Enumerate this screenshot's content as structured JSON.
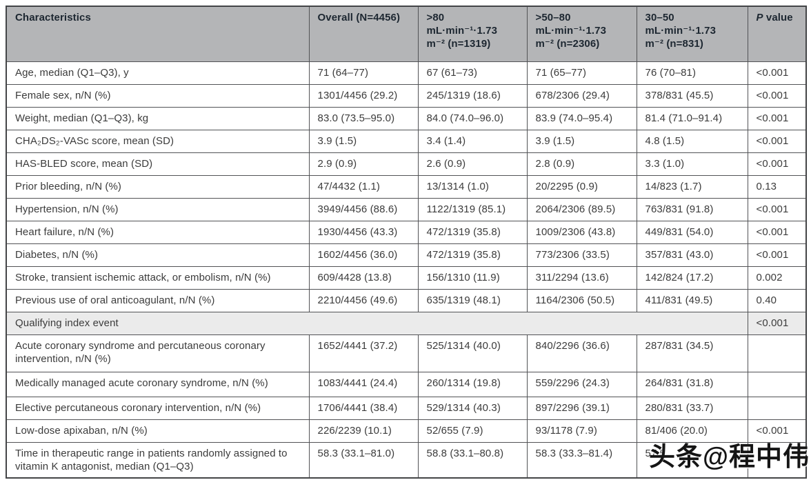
{
  "header": {
    "characteristics": "Characteristics",
    "overall": "Overall (N=4456)",
    "g80": ">80\nmL·min⁻¹·1.73\nm⁻² (n=1319)",
    "g50_80": ">50–80\nmL·min⁻¹·1.73\nm⁻² (n=2306)",
    "g30_50": "30–50\nmL·min⁻¹·1.73\nm⁻² (n=831)",
    "p_italic": "P",
    "p_rest": " value"
  },
  "rows": [
    {
      "label": "Age, median (Q1–Q3), y",
      "overall": "71 (64–77)",
      "g80": "67 (61–73)",
      "g50_80": "71 (65–77)",
      "g30_50": "76 (70–81)",
      "p": "<0.001"
    },
    {
      "label": "Female sex, n/N (%)",
      "overall": "1301/4456 (29.2)",
      "g80": "245/1319 (18.6)",
      "g50_80": "678/2306 (29.4)",
      "g30_50": "378/831 (45.5)",
      "p": "<0.001"
    },
    {
      "label": "Weight, median (Q1–Q3), kg",
      "overall": "83.0 (73.5–95.0)",
      "g80": "84.0 (74.0–96.0)",
      "g50_80": "83.9 (74.0–95.4)",
      "g30_50": "81.4 (71.0–91.4)",
      "p": "<0.001"
    },
    {
      "label": "CHA₂DS₂-VASc score, mean (SD)",
      "overall": "3.9 (1.5)",
      "g80": "3.4 (1.4)",
      "g50_80": "3.9 (1.5)",
      "g30_50": "4.8 (1.5)",
      "p": "<0.001"
    },
    {
      "label": "HAS-BLED score, mean (SD)",
      "overall": "2.9 (0.9)",
      "g80": "2.6 (0.9)",
      "g50_80": "2.8 (0.9)",
      "g30_50": "3.3 (1.0)",
      "p": "<0.001"
    },
    {
      "label": "Prior bleeding, n/N (%)",
      "overall": "47/4432 (1.1)",
      "g80": "13/1314 (1.0)",
      "g50_80": "20/2295 (0.9)",
      "g30_50": "14/823 (1.7)",
      "p": "0.13"
    },
    {
      "label": "Hypertension, n/N (%)",
      "overall": "3949/4456 (88.6)",
      "g80": "1122/1319 (85.1)",
      "g50_80": "2064/2306 (89.5)",
      "g30_50": "763/831 (91.8)",
      "p": "<0.001"
    },
    {
      "label": "Heart failure, n/N (%)",
      "overall": "1930/4456 (43.3)",
      "g80": "472/1319 (35.8)",
      "g50_80": "1009/2306 (43.8)",
      "g30_50": "449/831 (54.0)",
      "p": "<0.001"
    },
    {
      "label": "Diabetes, n/N (%)",
      "overall": "1602/4456 (36.0)",
      "g80": "472/1319 (35.8)",
      "g50_80": "773/2306 (33.5)",
      "g30_50": "357/831 (43.0)",
      "p": "<0.001"
    },
    {
      "label": "Stroke, transient ischemic attack, or embolism, n/N (%)",
      "overall": "609/4428 (13.8)",
      "g80": "156/1310 (11.9)",
      "g50_80": "311/2294 (13.6)",
      "g30_50": "142/824 (17.2)",
      "p": "0.002"
    },
    {
      "label": "Previous use of oral anticoagulant, n/N (%)",
      "overall": "2210/4456 (49.6)",
      "g80": "635/1319 (48.1)",
      "g50_80": "1164/2306 (50.5)",
      "g30_50": "411/831 (49.5)",
      "p": "0.40"
    },
    {
      "label": "Qualifying index event",
      "overall": "",
      "g80": "",
      "g50_80": "",
      "g30_50": "",
      "p": "<0.001"
    },
    {
      "label": "Acute coronary syndrome and percutaneous coronary intervention, n/N (%)",
      "overall": "1652/4441 (37.2)",
      "g80": "525/1314 (40.0)",
      "g50_80": "840/2296 (36.6)",
      "g30_50": "287/831 (34.5)",
      "p": ""
    },
    {
      "label": "Medically managed acute coronary syndrome, n/N (%)",
      "overall": "1083/4441 (24.4)",
      "g80": "260/1314 (19.8)",
      "g50_80": "559/2296 (24.3)",
      "g30_50": "264/831 (31.8)",
      "p": ""
    },
    {
      "label": "Elective percutaneous coronary intervention, n/N (%)",
      "overall": "1706/4441 (38.4)",
      "g80": "529/1314 (40.3)",
      "g50_80": "897/2296 (39.1)",
      "g30_50": "280/831 (33.7)",
      "p": ""
    },
    {
      "label": "Low-dose apixaban, n/N (%)",
      "overall": "226/2239 (10.1)",
      "g80": "52/655 (7.9)",
      "g50_80": "93/1178 (7.9)",
      "g30_50": "81/406 (20.0)",
      "p": "<0.001"
    },
    {
      "label": "Time in therapeutic range in patients randomly assigned to vitamin K antagonist, median (Q1–Q3)",
      "overall": "58.3 (33.1–81.0)",
      "g80": "58.8 (33.1–80.8)",
      "g50_80": "58.3 (33.3–81.4)",
      "g30_50": "57.5",
      "p": ""
    }
  ],
  "watermark": "头条@程中伟",
  "colors": {
    "header_bg": "#b4b5b7",
    "header_text": "#1d2731",
    "section_row_bg": "#ebebeb",
    "body_text": "#3b3b3b",
    "border": "#515255"
  }
}
